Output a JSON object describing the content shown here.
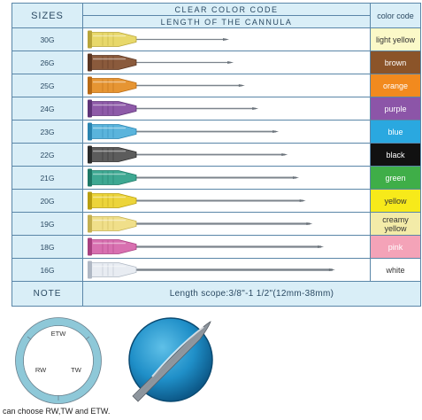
{
  "header": {
    "sizes_label": "SIZES",
    "clear_color_code": "CLEAR COLOR CODE",
    "length_of_cannula": "LENGTH OF THE CANNULA",
    "color_code_label": "color code"
  },
  "rows": [
    {
      "size": "30G",
      "color_name": "light yellow",
      "hub": "#e8d86a",
      "hub_dark": "#b8a53a",
      "swatch": "#fbf9c8",
      "text": "#333333",
      "length": 0.4
    },
    {
      "size": "26G",
      "color_name": "brown",
      "hub": "#8a5a3c",
      "hub_dark": "#5a3522",
      "swatch": "#8b5429",
      "text": "#ffffff",
      "length": 0.42
    },
    {
      "size": "25G",
      "color_name": "orange",
      "hub": "#e69533",
      "hub_dark": "#b86a15",
      "swatch": "#f28a1e",
      "text": "#ffffff",
      "length": 0.47
    },
    {
      "size": "24G",
      "color_name": "purple",
      "hub": "#8e5aa8",
      "hub_dark": "#5e3478",
      "swatch": "#8c55a8",
      "text": "#ffffff",
      "length": 0.53
    },
    {
      "size": "23G",
      "color_name": "blue",
      "hub": "#5ab4dc",
      "hub_dark": "#2a84b0",
      "swatch": "#2aa8e0",
      "text": "#ffffff",
      "length": 0.62
    },
    {
      "size": "22G",
      "color_name": "black",
      "hub": "#5c5c5c",
      "hub_dark": "#2a2a2a",
      "swatch": "#111111",
      "text": "#ffffff",
      "length": 0.66
    },
    {
      "size": "21G",
      "color_name": "green",
      "hub": "#3ea892",
      "hub_dark": "#1e7866",
      "swatch": "#3fae48",
      "text": "#ffffff",
      "length": 0.71
    },
    {
      "size": "20G",
      "color_name": "yellow",
      "hub": "#ecd43a",
      "hub_dark": "#b89e10",
      "swatch": "#f7ea1a",
      "text": "#333333",
      "length": 0.74
    },
    {
      "size": "19G",
      "color_name": "creamy yellow",
      "hub": "#f0df8a",
      "hub_dark": "#c4b050",
      "swatch": "#f3eba8",
      "text": "#333333",
      "length": 0.77
    },
    {
      "size": "18G",
      "color_name": "pink",
      "hub": "#d870b0",
      "hub_dark": "#a84080",
      "swatch": "#f4a3b8",
      "text": "#ffffff",
      "length": 0.82
    },
    {
      "size": "16G",
      "color_name": "white",
      "hub": "#e8ecf2",
      "hub_dark": "#b0b8c4",
      "swatch": "#ffffff",
      "text": "#333333",
      "length": 0.87
    }
  ],
  "note": {
    "label": "NOTE",
    "text": "Length scope:3/8\"-1 1/2\"(12mm-38mm)"
  },
  "wall_diagram": {
    "etw": "ETW",
    "rw": "RW",
    "tw": "TW",
    "ring_color": "#8ec8d8"
  },
  "footnote": "can choose RW,TW and ETW."
}
